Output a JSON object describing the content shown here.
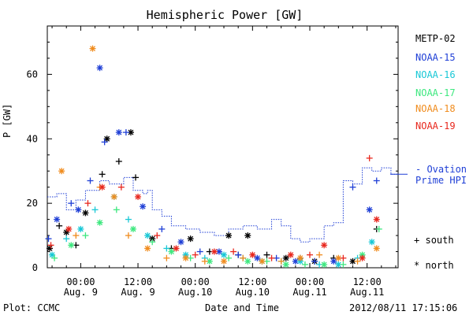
{
  "chart_data": {
    "type": "scatter",
    "title": "Hemispheric Power [GW]",
    "ylabel": "P [GW]",
    "xlabel": "Date and Time",
    "ylim": [
      0,
      75
    ],
    "yticks": [
      0,
      20,
      40,
      60
    ],
    "xlim": [
      "2012-08-08 17:00",
      "2012-08-11 18:30"
    ],
    "xticks": [
      {
        "time": "2012-08-09 00:00",
        "line1": "00:00",
        "line2": "Aug. 9"
      },
      {
        "time": "2012-08-09 12:00",
        "line1": "12:00",
        "line2": "Aug. 9"
      },
      {
        "time": "2012-08-10 00:00",
        "line1": "00:00",
        "line2": "Aug.10"
      },
      {
        "time": "2012-08-10 12:00",
        "line1": "12:00",
        "line2": "Aug.10"
      },
      {
        "time": "2012-08-11 00:00",
        "line1": "00:00",
        "line2": "Aug.11"
      },
      {
        "time": "2012-08-11 12:00",
        "line1": "12:00",
        "line2": "Aug.11"
      }
    ],
    "series": [
      {
        "name": "METP-02",
        "color": "#000000",
        "points": [
          [
            "2012-08-08 17:30",
            6
          ],
          [
            "2012-08-08 19:30",
            13
          ],
          [
            "2012-08-08 21:00",
            11
          ],
          [
            "2012-08-08 23:00",
            7
          ],
          [
            "2012-08-09 01:00",
            17
          ],
          [
            "2012-08-09 04:30",
            29
          ],
          [
            "2012-08-09 05:30",
            40
          ],
          [
            "2012-08-09 08:00",
            33
          ],
          [
            "2012-08-09 10:30",
            42
          ],
          [
            "2012-08-09 11:30",
            28
          ],
          [
            "2012-08-09 15:00",
            9
          ],
          [
            "2012-08-09 19:00",
            6
          ],
          [
            "2012-08-09 23:00",
            9
          ],
          [
            "2012-08-10 03:00",
            5
          ],
          [
            "2012-08-10 07:00",
            10
          ],
          [
            "2012-08-10 09:00",
            4
          ],
          [
            "2012-08-10 11:00",
            10
          ],
          [
            "2012-08-10 15:00",
            4
          ],
          [
            "2012-08-10 19:00",
            3
          ],
          [
            "2012-08-10 22:00",
            3
          ],
          [
            "2012-08-11 01:00",
            2
          ],
          [
            "2012-08-11 05:00",
            3
          ],
          [
            "2012-08-11 09:00",
            2
          ],
          [
            "2012-08-11 14:00",
            12
          ]
        ]
      },
      {
        "name": "NOAA-15",
        "color": "#1f3fd6",
        "points": [
          [
            "2012-08-08 17:15",
            9
          ],
          [
            "2012-08-08 19:00",
            15
          ],
          [
            "2012-08-08 22:00",
            20
          ],
          [
            "2012-08-08 23:30",
            18
          ],
          [
            "2012-08-09 02:00",
            27
          ],
          [
            "2012-08-09 04:00",
            62
          ],
          [
            "2012-08-09 05:00",
            39
          ],
          [
            "2012-08-09 08:00",
            42
          ],
          [
            "2012-08-09 09:30",
            42
          ],
          [
            "2012-08-09 13:00",
            19
          ],
          [
            "2012-08-09 17:00",
            12
          ],
          [
            "2012-08-09 21:00",
            8
          ],
          [
            "2012-08-10 01:00",
            5
          ],
          [
            "2012-08-10 05:00",
            5
          ],
          [
            "2012-08-10 09:00",
            4
          ],
          [
            "2012-08-10 13:00",
            3
          ],
          [
            "2012-08-10 17:00",
            3
          ],
          [
            "2012-08-10 21:00",
            2
          ],
          [
            "2012-08-11 01:00",
            2
          ],
          [
            "2012-08-11 05:00",
            2
          ],
          [
            "2012-08-11 09:00",
            25
          ],
          [
            "2012-08-11 12:30",
            18
          ],
          [
            "2012-08-11 14:00",
            27
          ]
        ]
      },
      {
        "name": "NOAA-16",
        "color": "#19c8d6",
        "points": [
          [
            "2012-08-08 18:00",
            4
          ],
          [
            "2012-08-08 21:00",
            9
          ],
          [
            "2012-08-09 00:00",
            12
          ],
          [
            "2012-08-09 03:00",
            18
          ],
          [
            "2012-08-09 07:00",
            22
          ],
          [
            "2012-08-09 10:00",
            15
          ],
          [
            "2012-08-09 14:00",
            10
          ],
          [
            "2012-08-09 18:00",
            6
          ],
          [
            "2012-08-09 22:00",
            4
          ],
          [
            "2012-08-10 02:00",
            3
          ],
          [
            "2012-08-10 06:00",
            4
          ],
          [
            "2012-08-10 10:00",
            3
          ],
          [
            "2012-08-10 14:00",
            2
          ],
          [
            "2012-08-10 18:00",
            2
          ],
          [
            "2012-08-10 22:00",
            2
          ],
          [
            "2012-08-11 02:00",
            1
          ],
          [
            "2012-08-11 06:00",
            1
          ],
          [
            "2012-08-11 10:00",
            3
          ],
          [
            "2012-08-11 13:00",
            8
          ]
        ]
      },
      {
        "name": "NOAA-17",
        "color": "#3ee87f",
        "points": [
          [
            "2012-08-08 18:30",
            3
          ],
          [
            "2012-08-08 22:00",
            7
          ],
          [
            "2012-08-09 01:00",
            10
          ],
          [
            "2012-08-09 04:00",
            14
          ],
          [
            "2012-08-09 07:30",
            18
          ],
          [
            "2012-08-09 11:00",
            12
          ],
          [
            "2012-08-09 15:00",
            8
          ],
          [
            "2012-08-09 19:00",
            5
          ],
          [
            "2012-08-09 23:00",
            3
          ],
          [
            "2012-08-10 03:00",
            2
          ],
          [
            "2012-08-10 07:00",
            3
          ],
          [
            "2012-08-10 11:00",
            2
          ],
          [
            "2012-08-10 15:00",
            2
          ],
          [
            "2012-08-10 19:00",
            1
          ],
          [
            "2012-08-10 23:00",
            1
          ],
          [
            "2012-08-11 03:00",
            1
          ],
          [
            "2012-08-11 07:00",
            1
          ],
          [
            "2012-08-11 11:00",
            4
          ],
          [
            "2012-08-11 14:30",
            12
          ]
        ]
      },
      {
        "name": "NOAA-18",
        "color": "#f08c1e",
        "points": [
          [
            "2012-08-08 20:00",
            30
          ],
          [
            "2012-08-08 23:00",
            10
          ],
          [
            "2012-08-09 02:30",
            68
          ],
          [
            "2012-08-09 04:00",
            25
          ],
          [
            "2012-08-09 07:00",
            22
          ],
          [
            "2012-08-09 10:00",
            10
          ],
          [
            "2012-08-09 14:00",
            6
          ],
          [
            "2012-08-09 18:00",
            3
          ],
          [
            "2012-08-09 22:00",
            3
          ],
          [
            "2012-08-10 02:00",
            2
          ],
          [
            "2012-08-10 06:00",
            2
          ],
          [
            "2012-08-10 10:00",
            3
          ],
          [
            "2012-08-10 14:00",
            2
          ],
          [
            "2012-08-10 18:00",
            2
          ],
          [
            "2012-08-10 22:00",
            3
          ],
          [
            "2012-08-11 02:00",
            4
          ],
          [
            "2012-08-11 06:00",
            3
          ],
          [
            "2012-08-11 10:00",
            2
          ],
          [
            "2012-08-11 14:00",
            6
          ]
        ]
      },
      {
        "name": "NOAA-19",
        "color": "#e8281e",
        "points": [
          [
            "2012-08-08 17:45",
            7
          ],
          [
            "2012-08-08 21:30",
            12
          ],
          [
            "2012-08-09 01:30",
            20
          ],
          [
            "2012-08-09 04:30",
            25
          ],
          [
            "2012-08-09 08:30",
            25
          ],
          [
            "2012-08-09 12:00",
            22
          ],
          [
            "2012-08-09 16:00",
            10
          ],
          [
            "2012-08-09 20:00",
            6
          ],
          [
            "2012-08-10 00:00",
            4
          ],
          [
            "2012-08-10 04:00",
            5
          ],
          [
            "2012-08-10 08:00",
            5
          ],
          [
            "2012-08-10 12:00",
            4
          ],
          [
            "2012-08-10 16:00",
            3
          ],
          [
            "2012-08-10 20:00",
            4
          ],
          [
            "2012-08-11 00:00",
            4
          ],
          [
            "2012-08-11 03:00",
            7
          ],
          [
            "2012-08-11 07:00",
            3
          ],
          [
            "2012-08-11 11:00",
            3
          ],
          [
            "2012-08-11 12:30",
            34
          ],
          [
            "2012-08-11 14:00",
            15
          ]
        ]
      }
    ],
    "ovation": {
      "label_line1": "- Ovation",
      "label_line2": "Prime HPI",
      "color": "#1f3fd6",
      "steps": [
        [
          "2012-08-08 17:00",
          22
        ],
        [
          "2012-08-08 19:00",
          23
        ],
        [
          "2012-08-08 21:00",
          18
        ],
        [
          "2012-08-08 23:00",
          21
        ],
        [
          "2012-08-09 01:00",
          24
        ],
        [
          "2012-08-09 04:00",
          27
        ],
        [
          "2012-08-09 06:00",
          26
        ],
        [
          "2012-08-09 09:00",
          28
        ],
        [
          "2012-08-09 11:00",
          24
        ],
        [
          "2012-08-09 13:00",
          23
        ],
        [
          "2012-08-09 14:00",
          24
        ],
        [
          "2012-08-09 15:00",
          18
        ],
        [
          "2012-08-09 17:00",
          16
        ],
        [
          "2012-08-09 19:00",
          13
        ],
        [
          "2012-08-09 22:00",
          12
        ],
        [
          "2012-08-10 01:00",
          11
        ],
        [
          "2012-08-10 04:00",
          10
        ],
        [
          "2012-08-10 07:00",
          12
        ],
        [
          "2012-08-10 10:00",
          13
        ],
        [
          "2012-08-10 13:00",
          12
        ],
        [
          "2012-08-10 16:00",
          15
        ],
        [
          "2012-08-10 18:00",
          13
        ],
        [
          "2012-08-10 20:00",
          9
        ],
        [
          "2012-08-10 22:00",
          8
        ],
        [
          "2012-08-11 00:00",
          9
        ],
        [
          "2012-08-11 03:00",
          13
        ],
        [
          "2012-08-11 05:00",
          14
        ],
        [
          "2012-08-11 07:00",
          27
        ],
        [
          "2012-08-11 09:00",
          26
        ],
        [
          "2012-08-11 11:00",
          31
        ],
        [
          "2012-08-11 13:00",
          30
        ],
        [
          "2012-08-11 15:00",
          31
        ],
        [
          "2012-08-11 17:00",
          29
        ]
      ]
    },
    "marker_key": {
      "south_symbol": "+",
      "south_label": "south",
      "north_symbol": "*",
      "north_label": "north"
    },
    "grid": false,
    "legend_position": "right"
  },
  "footer": {
    "plot_credit": "Plot: CCMC",
    "timestamp": "2012/08/11 17:15:06"
  }
}
